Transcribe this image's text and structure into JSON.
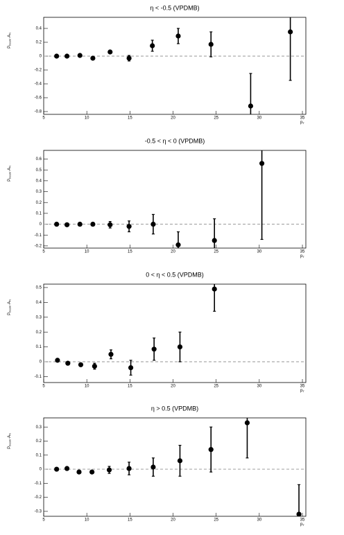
{
  "chart_data": [
    {
      "type": "scatter",
      "title": "η < -0.5 (VPDMB)",
      "ylabel": [
        "P",
        "beam",
        "·A",
        "N"
      ],
      "xlabel": [
        "p",
        "T"
      ],
      "x": [
        6.5,
        7.7,
        9.2,
        10.7,
        12.7,
        14.9,
        17.6,
        20.6,
        24.4,
        29.0,
        33.6
      ],
      "values": [
        0.0,
        0.0,
        0.01,
        -0.03,
        0.06,
        -0.03,
        0.15,
        0.29,
        0.17,
        -0.72,
        0.35
      ],
      "errors": [
        0.02,
        0.02,
        0.02,
        0.02,
        0.02,
        0.04,
        0.08,
        0.11,
        0.18,
        0.47,
        0.7
      ],
      "xlim": [
        5,
        35.4
      ],
      "ylim": [
        -0.84,
        0.56
      ],
      "xticks": [
        5,
        10,
        15,
        20,
        25,
        30,
        35
      ],
      "yticks": [
        -0.8,
        -0.6,
        -0.4,
        -0.2,
        0,
        0.2,
        0.4
      ],
      "hline": 0,
      "color": "#000000"
    },
    {
      "type": "scatter",
      "title": "-0.5 < η < 0 (VPDMB)",
      "ylabel": [
        "P",
        "beam",
        "·A",
        "N"
      ],
      "xlabel": [
        "p",
        "T"
      ],
      "x": [
        6.5,
        7.7,
        9.2,
        10.7,
        12.7,
        14.9,
        17.7,
        20.6,
        24.8,
        30.3
      ],
      "values": [
        0.0,
        -0.005,
        0.0,
        0.0,
        -0.005,
        -0.02,
        0.0,
        -0.19,
        -0.15,
        0.56
      ],
      "errors": [
        0.01,
        0.01,
        0.01,
        0.01,
        0.03,
        0.05,
        0.09,
        0.12,
        0.2,
        0.7
      ],
      "xlim": [
        5,
        35.4
      ],
      "ylim": [
        -0.22,
        0.68
      ],
      "xticks": [
        5,
        10,
        15,
        20,
        25,
        30,
        35
      ],
      "yticks": [
        -0.2,
        -0.1,
        0,
        0.1,
        0.2,
        0.3,
        0.4,
        0.5,
        0.6
      ],
      "hline": 0,
      "color": "#000000"
    },
    {
      "type": "scatter",
      "title": "0 < η < 0.5 (VPDMB)",
      "ylabel": [
        "P",
        "beam",
        "·A",
        "N"
      ],
      "xlabel": [
        "p",
        "T"
      ],
      "x": [
        6.6,
        7.8,
        9.3,
        10.9,
        12.8,
        15.1,
        17.8,
        20.8,
        24.8
      ],
      "values": [
        0.01,
        -0.01,
        -0.02,
        -0.03,
        0.05,
        -0.04,
        0.085,
        0.1,
        0.49
      ],
      "errors": [
        0.01,
        0.01,
        0.01,
        0.02,
        0.03,
        0.05,
        0.075,
        0.1,
        0.15
      ],
      "xlim": [
        5,
        35.4
      ],
      "ylim": [
        -0.14,
        0.523
      ],
      "xticks": [
        5,
        10,
        15,
        20,
        25,
        30,
        35
      ],
      "yticks": [
        -0.1,
        0,
        0.1,
        0.2,
        0.3,
        0.4,
        0.5
      ],
      "hline": 0,
      "color": "#000000"
    },
    {
      "type": "scatter",
      "title": "η > 0.5 (VPDMB)",
      "ylabel": [
        "P",
        "beam",
        "·A",
        "N"
      ],
      "xlabel": [
        "p",
        "T"
      ],
      "x": [
        6.5,
        7.7,
        9.1,
        10.6,
        12.6,
        14.9,
        17.7,
        20.8,
        24.4,
        28.6,
        34.6
      ],
      "values": [
        0.0,
        0.005,
        -0.02,
        -0.02,
        -0.005,
        0.005,
        0.015,
        0.06,
        0.14,
        0.33,
        -0.32
      ],
      "errors": [
        0.01,
        0.01,
        0.01,
        0.01,
        0.025,
        0.045,
        0.065,
        0.11,
        0.16,
        0.25,
        0.21
      ],
      "xlim": [
        5,
        35.4
      ],
      "ylim": [
        -0.335,
        0.365
      ],
      "xticks": [
        5,
        10,
        15,
        20,
        25,
        30,
        35
      ],
      "yticks": [
        -0.3,
        -0.2,
        -0.1,
        0,
        0.1,
        0.2,
        0.3
      ],
      "hline": 0,
      "color": "#000000"
    }
  ]
}
